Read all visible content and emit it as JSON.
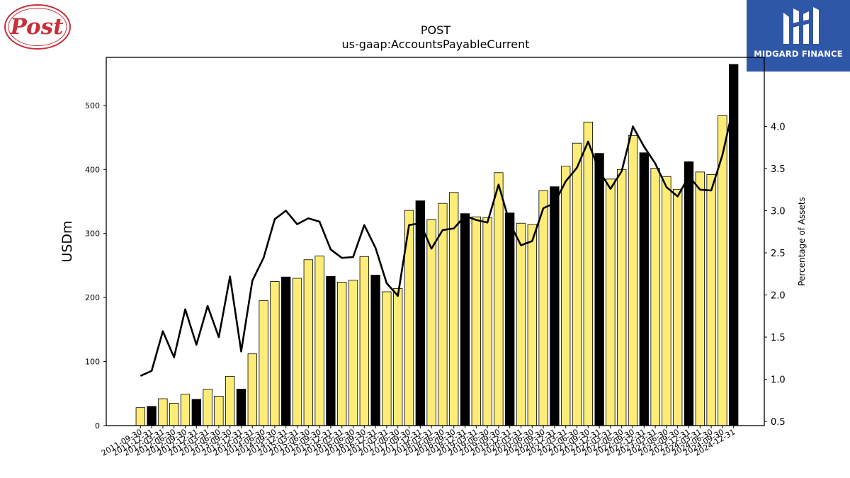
{
  "logos": {
    "left_text": "Post",
    "right_text": "MIDGARD FINANCE"
  },
  "chart_data": {
    "type": "bar+line",
    "title": "POST",
    "subtitle": "us-gaap:AccountsPayableCurrent",
    "ylabel": "USDm",
    "y2label": "Percentage of Assets",
    "ylim": [
      0,
      575
    ],
    "y2lim": [
      0.45,
      4.82
    ],
    "yticks": [
      0,
      100,
      200,
      300,
      400,
      500
    ],
    "y2ticks": [
      "0.5",
      "1.0",
      "1.5",
      "2.0",
      "2.5",
      "3.0",
      "3.5",
      "4.0"
    ],
    "colors": {
      "bar_light": "#fdec78",
      "bar_dark": "#000000",
      "line": "#000000"
    },
    "categories": [
      "2011-09-30",
      "2011-12-31",
      "2012-03-31",
      "2012-06-30",
      "2012-09-30",
      "2012-12-31",
      "2013-03-31",
      "2013-06-30",
      "2013-09-30",
      "2013-12-31",
      "2014-03-31",
      "2014-06-30",
      "2014-09-30",
      "2014-12-31",
      "2015-03-31",
      "2015-06-30",
      "2015-09-30",
      "2015-12-31",
      "2016-03-31",
      "2016-06-30",
      "2016-09-30",
      "2016-12-31",
      "2017-03-31",
      "2017-06-30",
      "2017-09-30",
      "2017-12-31",
      "2018-03-31",
      "2018-06-30",
      "2018-09-30",
      "2018-12-31",
      "2019-03-31",
      "2019-06-30",
      "2019-09-30",
      "2019-12-31",
      "2020-03-31",
      "2020-06-30",
      "2020-09-30",
      "2020-12-31",
      "2021-03-31",
      "2021-06-30",
      "2021-09-30",
      "2021-12-31",
      "2022-03-31",
      "2022-06-30",
      "2022-09-30",
      "2022-12-31",
      "2023-03-31",
      "2023-06-30",
      "2023-09-30",
      "2023-12-31",
      "2024-03-31",
      "2024-06-30",
      "2024-09-30",
      "2024-12-31"
    ],
    "series": [
      {
        "kind": "bar",
        "values": [
          28,
          30,
          42,
          35,
          49,
          41,
          57,
          46,
          77,
          57,
          112,
          195,
          225,
          232,
          230,
          259,
          265,
          233,
          224,
          227,
          264,
          235,
          209,
          214,
          336,
          351,
          322,
          347,
          364,
          331,
          326,
          325,
          395,
          332,
          316,
          314,
          367,
          373,
          405,
          441,
          474,
          425,
          385,
          400,
          453,
          426,
          402,
          389,
          369,
          412,
          396,
          392,
          484,
          564
        ],
        "dark": [
          false,
          true,
          false,
          false,
          false,
          true,
          false,
          false,
          false,
          true,
          false,
          false,
          false,
          true,
          false,
          false,
          false,
          true,
          false,
          false,
          false,
          true,
          false,
          false,
          false,
          true,
          false,
          false,
          false,
          true,
          false,
          false,
          false,
          true,
          false,
          false,
          false,
          true,
          false,
          false,
          false,
          true,
          false,
          false,
          false,
          true,
          false,
          false,
          false,
          true,
          false,
          false,
          false,
          true
        ]
      },
      {
        "kind": "line",
        "values": [
          1.04,
          1.1,
          1.57,
          1.26,
          1.83,
          1.41,
          1.87,
          1.5,
          2.22,
          1.33,
          2.17,
          2.44,
          2.9,
          3.0,
          2.84,
          2.91,
          2.87,
          2.54,
          2.44,
          2.45,
          2.83,
          2.56,
          2.14,
          1.99,
          2.83,
          2.85,
          2.55,
          2.77,
          2.79,
          2.94,
          2.89,
          2.86,
          3.31,
          2.85,
          2.59,
          2.64,
          3.03,
          3.09,
          3.35,
          3.51,
          3.82,
          3.47,
          3.26,
          3.47,
          4.0,
          3.76,
          3.56,
          3.28,
          3.17,
          3.41,
          3.25,
          3.24,
          3.66,
          4.25
        ]
      }
    ]
  }
}
